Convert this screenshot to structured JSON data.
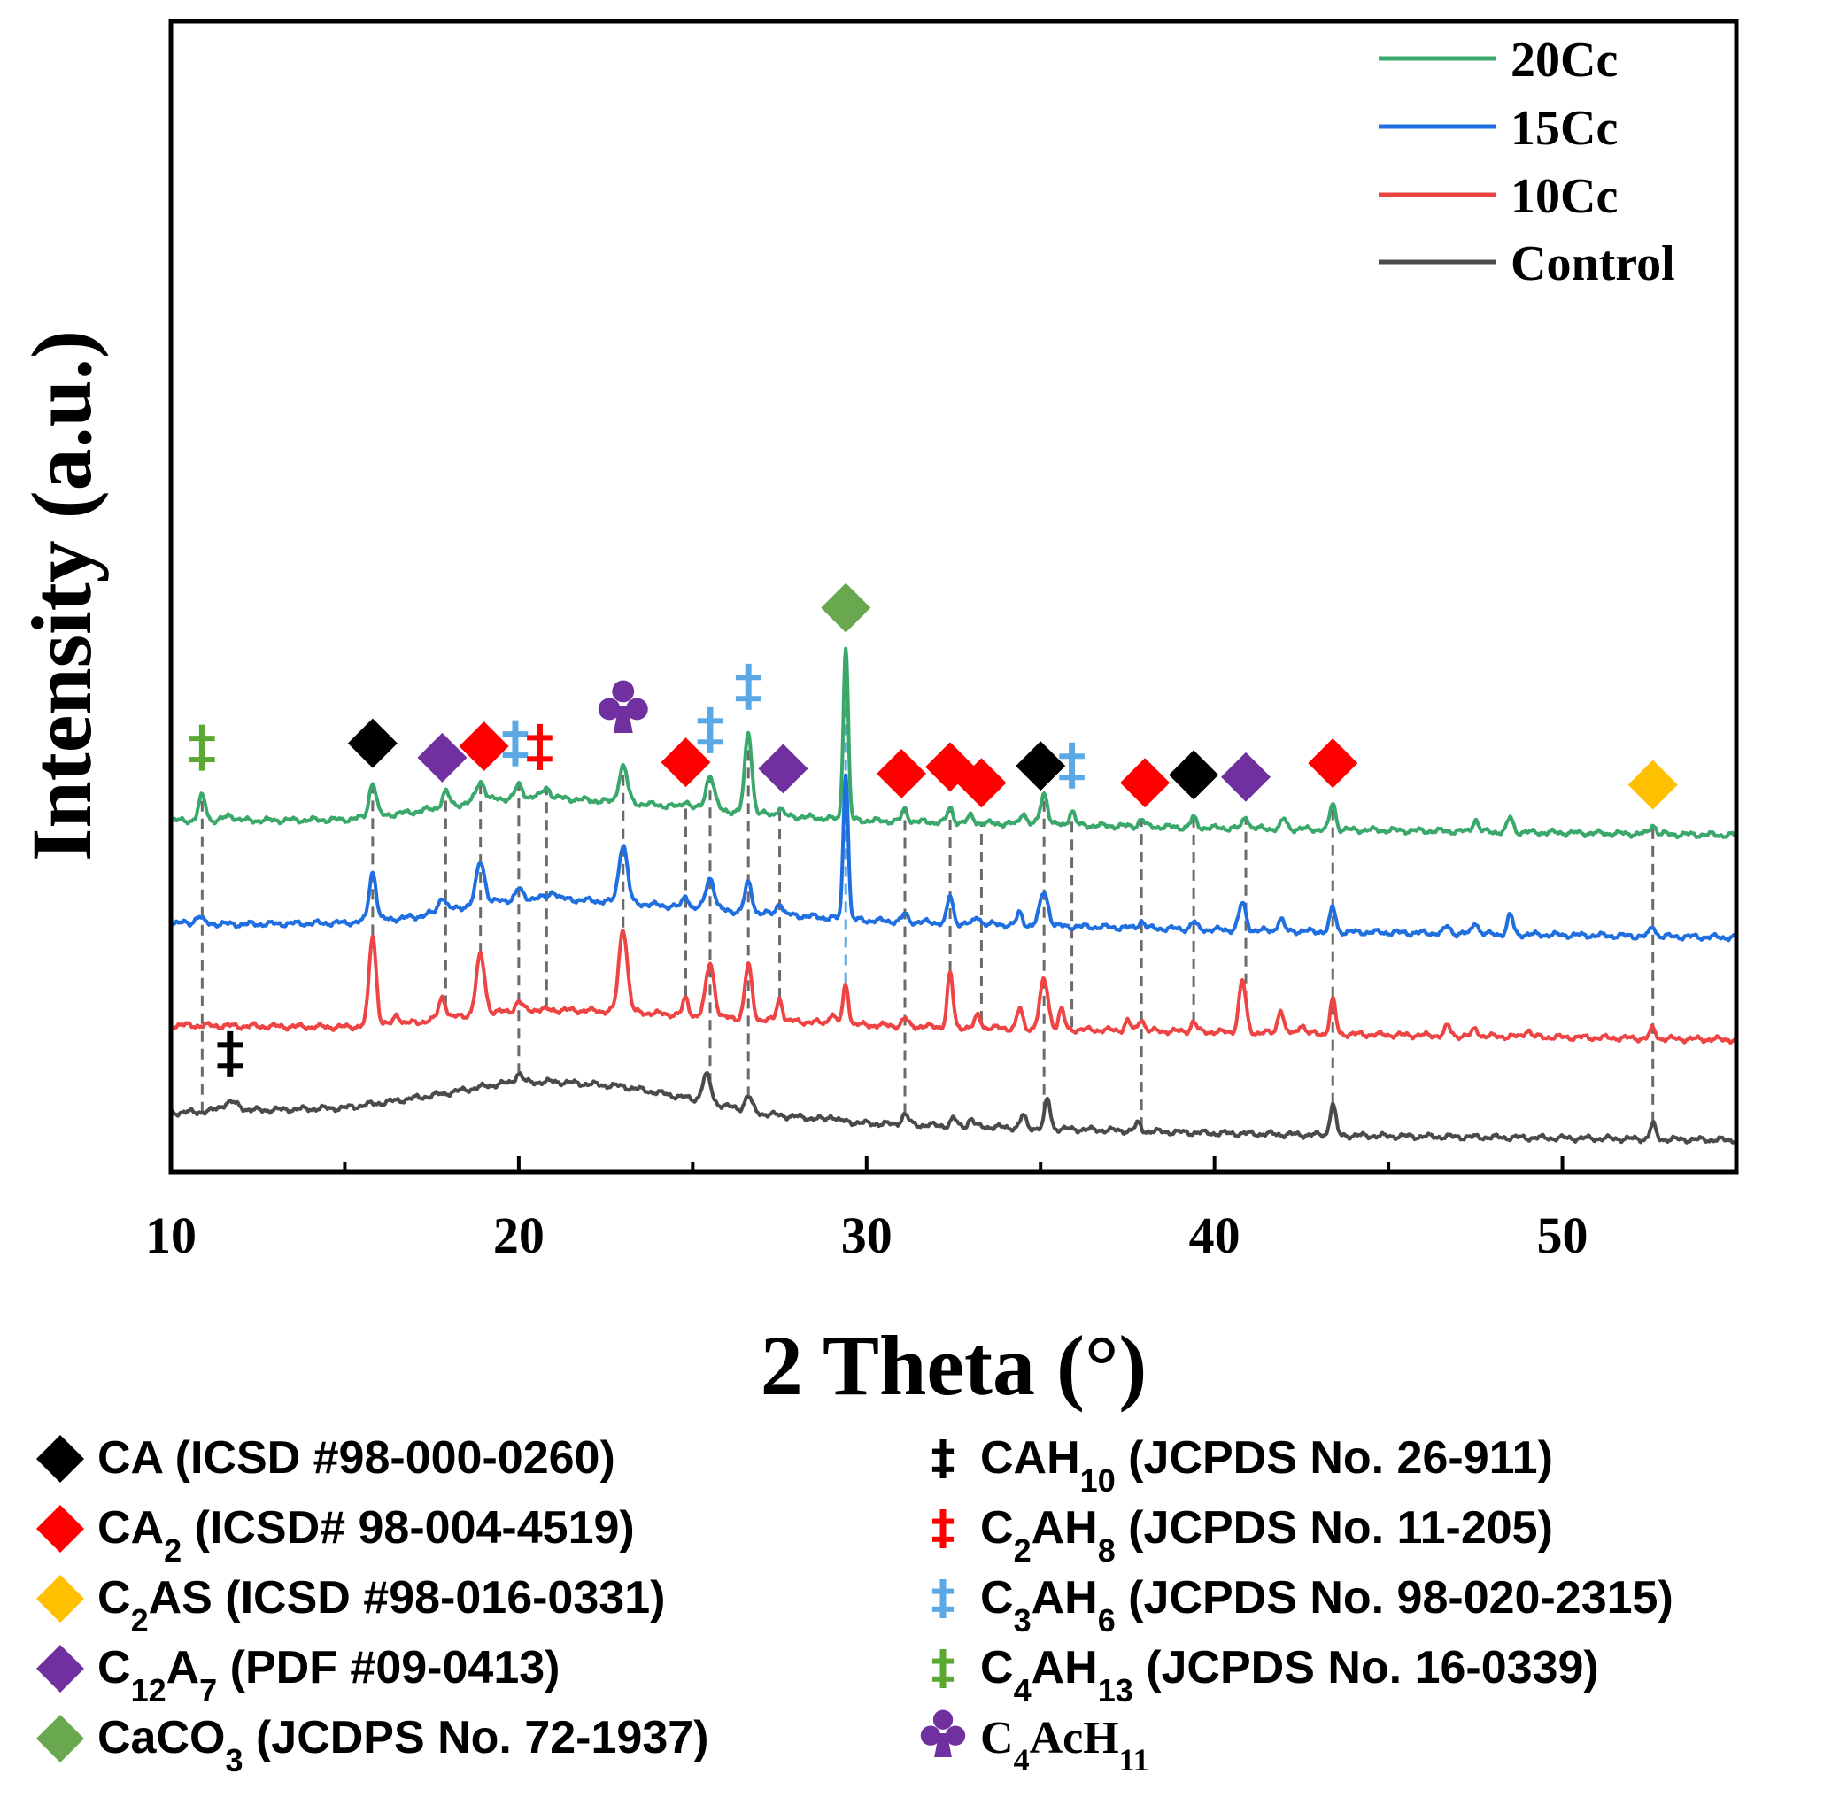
{
  "chart_data": {
    "type": "line",
    "xlabel": "2 Theta (°)",
    "ylabel": "Intensity (a.u.)",
    "xlim": [
      10,
      55
    ],
    "xticks": [
      "10",
      "20",
      "30",
      "40",
      "50"
    ],
    "y_ticks_shown": false,
    "legend_position": "top-right",
    "legend_order": [
      "20Cc",
      "15Cc",
      "10Cc",
      "Control"
    ],
    "series": [
      {
        "name": "Control",
        "color": "#4a4a4a",
        "offset": 0,
        "baseline": [
          [
            10,
            0.6
          ],
          [
            12,
            0.64
          ],
          [
            15,
            0.7
          ],
          [
            17.5,
            0.95
          ],
          [
            19.5,
            1.2
          ],
          [
            21,
            1.24
          ],
          [
            23,
            1.14
          ],
          [
            25,
            0.88
          ],
          [
            27,
            0.58
          ],
          [
            30,
            0.38
          ],
          [
            35,
            0.28
          ],
          [
            40,
            0.18
          ],
          [
            45,
            0.12
          ],
          [
            50,
            0.08
          ],
          [
            55,
            0.04
          ]
        ],
        "peaks": [
          [
            11.7,
            0.18,
            0.25
          ],
          [
            20.0,
            0.2,
            0.1
          ],
          [
            25.4,
            0.55,
            0.12
          ],
          [
            26.6,
            0.3,
            0.1
          ],
          [
            29.0,
            0.1,
            0.08
          ],
          [
            31.1,
            0.2,
            0.1
          ],
          [
            32.5,
            0.15,
            0.08
          ],
          [
            33.0,
            0.15,
            0.08
          ],
          [
            34.5,
            0.25,
            0.08
          ],
          [
            35.2,
            0.6,
            0.08
          ],
          [
            37.8,
            0.15,
            0.08
          ],
          [
            43.4,
            0.65,
            0.08
          ],
          [
            52.6,
            0.3,
            0.08
          ]
        ]
      },
      {
        "name": "10Cc",
        "color": "#ef4444",
        "offset": 2.1,
        "baseline": [
          [
            10,
            0.3
          ],
          [
            12,
            0.28
          ],
          [
            15,
            0.26
          ],
          [
            17,
            0.35
          ],
          [
            19,
            0.55
          ],
          [
            20.5,
            0.62
          ],
          [
            23,
            0.58
          ],
          [
            26,
            0.45
          ],
          [
            30,
            0.3
          ],
          [
            35,
            0.22
          ],
          [
            40,
            0.16
          ],
          [
            45,
            0.1
          ],
          [
            50,
            0.05
          ],
          [
            55,
            0.0
          ]
        ],
        "peaks": [
          [
            15.8,
            1.85,
            0.1
          ],
          [
            16.5,
            0.2,
            0.08
          ],
          [
            17.8,
            0.45,
            0.1
          ],
          [
            18.9,
            1.2,
            0.12
          ],
          [
            20.0,
            0.18,
            0.1
          ],
          [
            23.0,
            1.7,
            0.12
          ],
          [
            24.8,
            0.35,
            0.08
          ],
          [
            25.5,
            1.1,
            0.12
          ],
          [
            26.6,
            1.1,
            0.1
          ],
          [
            27.5,
            0.45,
            0.08
          ],
          [
            29.0,
            0.2,
            0.08
          ],
          [
            29.4,
            0.8,
            0.08
          ],
          [
            31.1,
            0.15,
            0.08
          ],
          [
            32.4,
            1.1,
            0.08
          ],
          [
            33.2,
            0.25,
            0.08
          ],
          [
            34.4,
            0.4,
            0.08
          ],
          [
            35.1,
            1.0,
            0.12
          ],
          [
            35.6,
            0.4,
            0.08
          ],
          [
            37.5,
            0.2,
            0.08
          ],
          [
            37.9,
            0.25,
            0.08
          ],
          [
            39.4,
            0.2,
            0.08
          ],
          [
            40.8,
            1.05,
            0.1
          ],
          [
            41.9,
            0.5,
            0.08
          ],
          [
            42.5,
            0.2,
            0.08
          ],
          [
            43.4,
            0.7,
            0.08
          ],
          [
            46.7,
            0.2,
            0.08
          ],
          [
            47.5,
            0.15,
            0.08
          ],
          [
            49.0,
            0.15,
            0.08
          ],
          [
            52.6,
            0.2,
            0.08
          ]
        ]
      },
      {
        "name": "15Cc",
        "color": "#1f6fe0",
        "offset": 4.2,
        "baseline": [
          [
            10,
            0.3
          ],
          [
            12,
            0.27
          ],
          [
            15,
            0.3
          ],
          [
            17,
            0.42
          ],
          [
            19,
            0.72
          ],
          [
            20.5,
            0.82
          ],
          [
            23,
            0.72
          ],
          [
            26,
            0.55
          ],
          [
            30,
            0.35
          ],
          [
            35,
            0.24
          ],
          [
            40,
            0.16
          ],
          [
            45,
            0.1
          ],
          [
            50,
            0.05
          ],
          [
            55,
            0.0
          ]
        ],
        "peaks": [
          [
            10.8,
            0.15,
            0.1
          ],
          [
            15.8,
            1.0,
            0.1
          ],
          [
            17.8,
            0.3,
            0.1
          ],
          [
            18.9,
            0.85,
            0.12
          ],
          [
            20.0,
            0.2,
            0.1
          ],
          [
            21.0,
            0.15,
            0.1
          ],
          [
            23.0,
            1.2,
            0.12
          ],
          [
            24.8,
            0.25,
            0.08
          ],
          [
            25.5,
            0.65,
            0.12
          ],
          [
            26.6,
            0.6,
            0.1
          ],
          [
            27.5,
            0.25,
            0.08
          ],
          [
            29.4,
            3.0,
            0.07
          ],
          [
            31.1,
            0.15,
            0.08
          ],
          [
            32.4,
            0.55,
            0.08
          ],
          [
            33.2,
            0.15,
            0.08
          ],
          [
            34.4,
            0.25,
            0.08
          ],
          [
            35.1,
            0.7,
            0.12
          ],
          [
            37.9,
            0.15,
            0.08
          ],
          [
            39.4,
            0.15,
            0.08
          ],
          [
            40.8,
            0.55,
            0.1
          ],
          [
            41.9,
            0.25,
            0.08
          ],
          [
            43.4,
            0.5,
            0.08
          ],
          [
            46.7,
            0.15,
            0.08
          ],
          [
            47.5,
            0.25,
            0.08
          ],
          [
            48.5,
            0.4,
            0.08
          ],
          [
            52.6,
            0.2,
            0.08
          ]
        ]
      },
      {
        "name": "20Cc",
        "color": "#3aa86b",
        "offset": 6.3,
        "baseline": [
          [
            10,
            0.3
          ],
          [
            12,
            0.3
          ],
          [
            15,
            0.32
          ],
          [
            17,
            0.48
          ],
          [
            19,
            0.72
          ],
          [
            20.5,
            0.8
          ],
          [
            22,
            0.72
          ],
          [
            24,
            0.62
          ],
          [
            26,
            0.5
          ],
          [
            28,
            0.38
          ],
          [
            30,
            0.3
          ],
          [
            35,
            0.22
          ],
          [
            40,
            0.15
          ],
          [
            45,
            0.1
          ],
          [
            50,
            0.05
          ],
          [
            55,
            0.0
          ]
        ],
        "peaks": [
          [
            10.9,
            0.5,
            0.1
          ],
          [
            11.7,
            0.1,
            0.15
          ],
          [
            15.8,
            0.7,
            0.1
          ],
          [
            17.9,
            0.3,
            0.1
          ],
          [
            18.9,
            0.4,
            0.12
          ],
          [
            20.0,
            0.25,
            0.1
          ],
          [
            20.8,
            0.2,
            0.1
          ],
          [
            23.0,
            0.75,
            0.12
          ],
          [
            24.8,
            0.15,
            0.08
          ],
          [
            25.5,
            0.7,
            0.12
          ],
          [
            26.6,
            1.65,
            0.1
          ],
          [
            27.5,
            0.15,
            0.08
          ],
          [
            29.4,
            3.55,
            0.07
          ],
          [
            31.1,
            0.25,
            0.08
          ],
          [
            32.4,
            0.3,
            0.08
          ],
          [
            33.0,
            0.15,
            0.08
          ],
          [
            34.5,
            0.25,
            0.08
          ],
          [
            35.1,
            0.65,
            0.1
          ],
          [
            35.9,
            0.3,
            0.08
          ],
          [
            37.9,
            0.15,
            0.08
          ],
          [
            39.4,
            0.2,
            0.08
          ],
          [
            40.9,
            0.25,
            0.08
          ],
          [
            42.0,
            0.2,
            0.08
          ],
          [
            43.4,
            0.55,
            0.08
          ],
          [
            47.5,
            0.25,
            0.08
          ],
          [
            48.5,
            0.3,
            0.08
          ],
          [
            52.6,
            0.2,
            0.08
          ]
        ]
      }
    ],
    "dashed_lines": [
      {
        "x": 10.9,
        "from": "Control",
        "to": "20Cc",
        "color": "#6b6b6b"
      },
      {
        "x": 15.8,
        "from": "10Cc",
        "to": "20Cc",
        "color": "#6b6b6b"
      },
      {
        "x": 17.9,
        "from": "10Cc",
        "to": "20Cc",
        "color": "#6b6b6b"
      },
      {
        "x": 18.9,
        "from": "10Cc",
        "to": "20Cc",
        "color": "#6b6b6b"
      },
      {
        "x": 20.0,
        "from": "Control",
        "to": "20Cc",
        "color": "#6b6b6b"
      },
      {
        "x": 20.8,
        "from": "10Cc",
        "to": "20Cc",
        "color": "#6b6b6b"
      },
      {
        "x": 23.0,
        "from": "10Cc",
        "to": "20Cc",
        "color": "#6b6b6b"
      },
      {
        "x": 24.8,
        "from": "10Cc",
        "to": "20Cc",
        "color": "#6b6b6b"
      },
      {
        "x": 25.5,
        "from": "Control",
        "to": "20Cc",
        "color": "#6b6b6b"
      },
      {
        "x": 26.6,
        "from": "Control",
        "to": "20Cc",
        "color": "#6b6b6b"
      },
      {
        "x": 27.5,
        "from": "10Cc",
        "to": "20Cc",
        "color": "#6b6b6b"
      },
      {
        "x": 29.4,
        "from": "10Cc",
        "to": "20Cc",
        "color": "#5aa9e6"
      },
      {
        "x": 31.1,
        "from": "Control",
        "to": "20Cc",
        "color": "#6b6b6b"
      },
      {
        "x": 32.4,
        "from": "10Cc",
        "to": "20Cc",
        "color": "#6b6b6b"
      },
      {
        "x": 33.3,
        "from": "10Cc",
        "to": "20Cc",
        "color": "#6b6b6b"
      },
      {
        "x": 35.1,
        "from": "Control",
        "to": "20Cc",
        "color": "#6b6b6b"
      },
      {
        "x": 35.9,
        "from": "10Cc",
        "to": "20Cc",
        "color": "#6b6b6b"
      },
      {
        "x": 37.9,
        "from": "Control",
        "to": "20Cc",
        "color": "#6b6b6b"
      },
      {
        "x": 39.4,
        "from": "10Cc",
        "to": "20Cc",
        "color": "#6b6b6b"
      },
      {
        "x": 40.9,
        "from": "10Cc",
        "to": "20Cc",
        "color": "#6b6b6b"
      },
      {
        "x": 43.4,
        "from": "Control",
        "to": "20Cc",
        "color": "#6b6b6b"
      },
      {
        "x": 52.6,
        "from": "Control",
        "to": "20Cc",
        "color": "#6b6b6b"
      }
    ],
    "markers": [
      {
        "x": 10.9,
        "symbol": "ddagger",
        "color": "#5aa832",
        "phase": "C4AH13"
      },
      {
        "x": 15.8,
        "symbol": "diamond",
        "color": "#000000",
        "phase": "CA"
      },
      {
        "x": 17.8,
        "symbol": "diamond",
        "color": "#7030a0",
        "phase": "C12A7"
      },
      {
        "x": 19.0,
        "symbol": "diamond",
        "color": "#ff0000",
        "phase": "CA2"
      },
      {
        "x": 19.9,
        "symbol": "ddagger",
        "color": "#5aa9e6",
        "phase": "C3AH6"
      },
      {
        "x": 20.6,
        "symbol": "ddagger",
        "color": "#ff0000",
        "phase": "C2AH8"
      },
      {
        "x": 23.0,
        "symbol": "club",
        "color": "#7030a0",
        "phase": "C4AcH11"
      },
      {
        "x": 24.8,
        "symbol": "diamond",
        "color": "#ff0000",
        "phase": "CA2"
      },
      {
        "x": 25.5,
        "symbol": "ddagger",
        "color": "#5aa9e6",
        "phase": "C3AH6"
      },
      {
        "x": 26.6,
        "symbol": "ddagger",
        "color": "#5aa9e6",
        "phase": "C3AH6"
      },
      {
        "x": 27.6,
        "symbol": "diamond",
        "color": "#7030a0",
        "phase": "C12A7"
      },
      {
        "x": 29.4,
        "symbol": "diamond",
        "color": "#6aa84f",
        "phase": "CaCO3"
      },
      {
        "x": 31.0,
        "symbol": "diamond",
        "color": "#ff0000",
        "phase": "CA2"
      },
      {
        "x": 32.4,
        "symbol": "diamond",
        "color": "#ff0000",
        "phase": "CA2"
      },
      {
        "x": 33.3,
        "symbol": "diamond",
        "color": "#ff0000",
        "phase": "CA2"
      },
      {
        "x": 35.0,
        "symbol": "diamond",
        "color": "#000000",
        "phase": "CA"
      },
      {
        "x": 35.9,
        "symbol": "ddagger",
        "color": "#5aa9e6",
        "phase": "C3AH6"
      },
      {
        "x": 38.0,
        "symbol": "diamond",
        "color": "#ff0000",
        "phase": "CA2"
      },
      {
        "x": 39.4,
        "symbol": "diamond",
        "color": "#000000",
        "phase": "CA"
      },
      {
        "x": 40.9,
        "symbol": "diamond",
        "color": "#7030a0",
        "phase": "C12A7"
      },
      {
        "x": 43.4,
        "symbol": "diamond",
        "color": "#ff0000",
        "phase": "CA2"
      },
      {
        "x": 52.6,
        "symbol": "diamond",
        "color": "#ffc000",
        "phase": "C2AS"
      },
      {
        "x": 11.7,
        "symbol": "ddagger",
        "color": "#000000",
        "phase": "CAH10"
      }
    ]
  },
  "phase_legend_left": [
    {
      "symbol": "diamond",
      "color": "#000000",
      "text": "CA (ICSD #98-000-0260)"
    },
    {
      "symbol": "diamond",
      "color": "#ff0000",
      "pre": "CA",
      "sub": "2",
      "post": " (ICSD# 98-004-4519)"
    },
    {
      "symbol": "diamond",
      "color": "#ffc000",
      "pre": "C",
      "sub": "2",
      "post": "AS (ICSD #98-016-0331)"
    },
    {
      "symbol": "diamond",
      "color": "#7030a0",
      "pre": "C",
      "sub": "12",
      "mid": "A",
      "sub2": "7",
      "post": " (PDF #09-0413)"
    },
    {
      "symbol": "diamond",
      "color": "#6aa84f",
      "pre": "CaCO",
      "sub": "3",
      "post": " (JCDPS No. 72-1937)"
    }
  ],
  "phase_legend_right": [
    {
      "symbol": "ddagger",
      "color": "#000000",
      "pre": "CAH",
      "sub": "10",
      "post": " (JCPDS No. 26-911)"
    },
    {
      "symbol": "ddagger",
      "color": "#ff0000",
      "pre": "C",
      "sub": "2",
      "mid": "AH",
      "sub2": "8",
      "post": " (JCPDS No. 11-205)"
    },
    {
      "symbol": "ddagger",
      "color": "#5aa9e6",
      "pre": "C",
      "sub": "3",
      "mid": "AH",
      "sub2": "6",
      "post": " (JCPDS No. 98-020-2315)"
    },
    {
      "symbol": "ddagger",
      "color": "#5aa832",
      "pre": "C",
      "sub": "4",
      "mid": "AH",
      "sub2": "13",
      "post": " (JCPDS No. 16-0339)"
    },
    {
      "symbol": "club",
      "color": "#7030a0",
      "pre": "C",
      "sub": "4",
      "mid": "AcH",
      "sub2": "11",
      "post": "",
      "serif": true
    }
  ]
}
